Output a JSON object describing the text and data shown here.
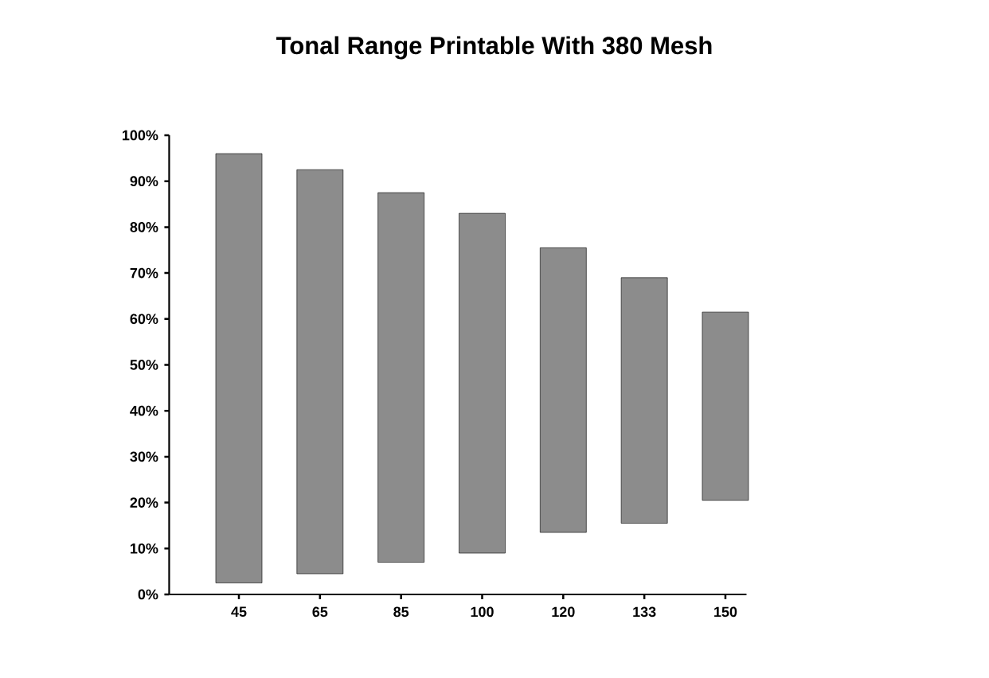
{
  "chart_data": {
    "type": "bar",
    "title": "Tonal Range Printable With 380 Mesh",
    "categories": [
      "45",
      "65",
      "85",
      "100",
      "120",
      "133",
      "150"
    ],
    "base": [
      2.5,
      4.5,
      7,
      9,
      13.5,
      15.5,
      20.5
    ],
    "values": [
      93.5,
      88,
      80.5,
      74,
      62,
      53.5,
      41
    ],
    "color": "#8c8c8c",
    "ylim": [
      0,
      100
    ],
    "yticks": [
      {
        "value": 0,
        "label": "0%"
      },
      {
        "value": 10,
        "label": "10%"
      },
      {
        "value": 20,
        "label": "20%"
      },
      {
        "value": 30,
        "label": "30%"
      },
      {
        "value": 40,
        "label": "40%"
      },
      {
        "value": 50,
        "label": "50%"
      },
      {
        "value": 60,
        "label": "60%"
      },
      {
        "value": 70,
        "label": "70%"
      },
      {
        "value": 80,
        "label": "80%"
      },
      {
        "value": 90,
        "label": "90%"
      },
      {
        "value": 100,
        "label": "100%"
      }
    ],
    "grid": false
  }
}
